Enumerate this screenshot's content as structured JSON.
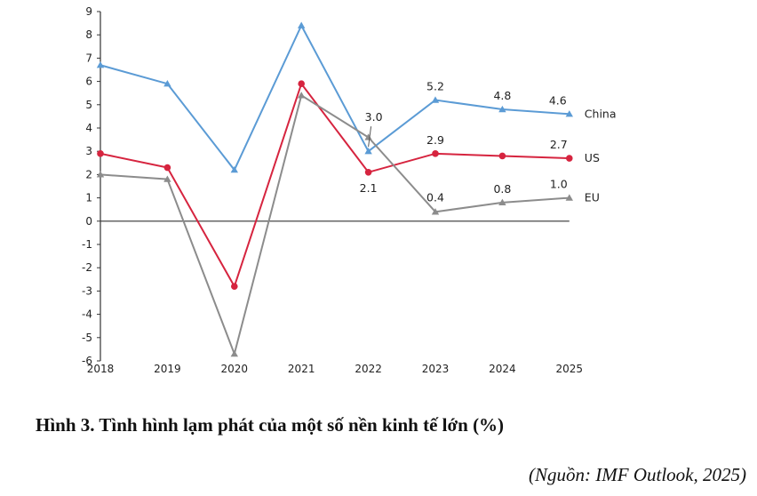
{
  "chart_data": {
    "type": "line",
    "categories": [
      "2018",
      "2019",
      "2020",
      "2021",
      "2022",
      "2023",
      "2024",
      "2025"
    ],
    "ylim": [
      -6,
      9
    ],
    "yticks": [
      "9",
      "8",
      "7",
      "6",
      "5",
      "4",
      "3",
      "2",
      "1",
      "0",
      "-1",
      "-2",
      "-3",
      "-4",
      "-5",
      "-6"
    ],
    "grid": false,
    "series": [
      {
        "name": "China",
        "color": "#5b9bd5",
        "marker": "triangle",
        "values": [
          6.7,
          5.9,
          2.2,
          8.4,
          3.0,
          5.2,
          4.8,
          4.6
        ],
        "labels": [
          "",
          "",
          "",
          "",
          "3.0",
          "5.2",
          "4.8",
          "4.6"
        ]
      },
      {
        "name": "US",
        "color": "#d6243f",
        "marker": "circle",
        "values": [
          2.9,
          2.3,
          -2.8,
          5.9,
          2.1,
          2.9,
          2.8,
          2.7
        ],
        "labels": [
          "",
          "",
          "",
          "",
          "2.1",
          "2.9",
          "",
          "2.7"
        ]
      },
      {
        "name": "EU",
        "color": "#8c8c8c",
        "marker": "triangle",
        "values": [
          2.0,
          1.8,
          -5.7,
          5.4,
          3.6,
          0.4,
          0.8,
          1.0
        ],
        "labels": [
          "",
          "",
          "",
          "",
          "",
          "0.4",
          "0.8",
          "1.0"
        ]
      }
    ]
  },
  "caption": "Hình 3. Tình hình lạm phát của một số nền kinh tế lớn (%)",
  "source": "(Nguồn: IMF Outlook, 2025)"
}
